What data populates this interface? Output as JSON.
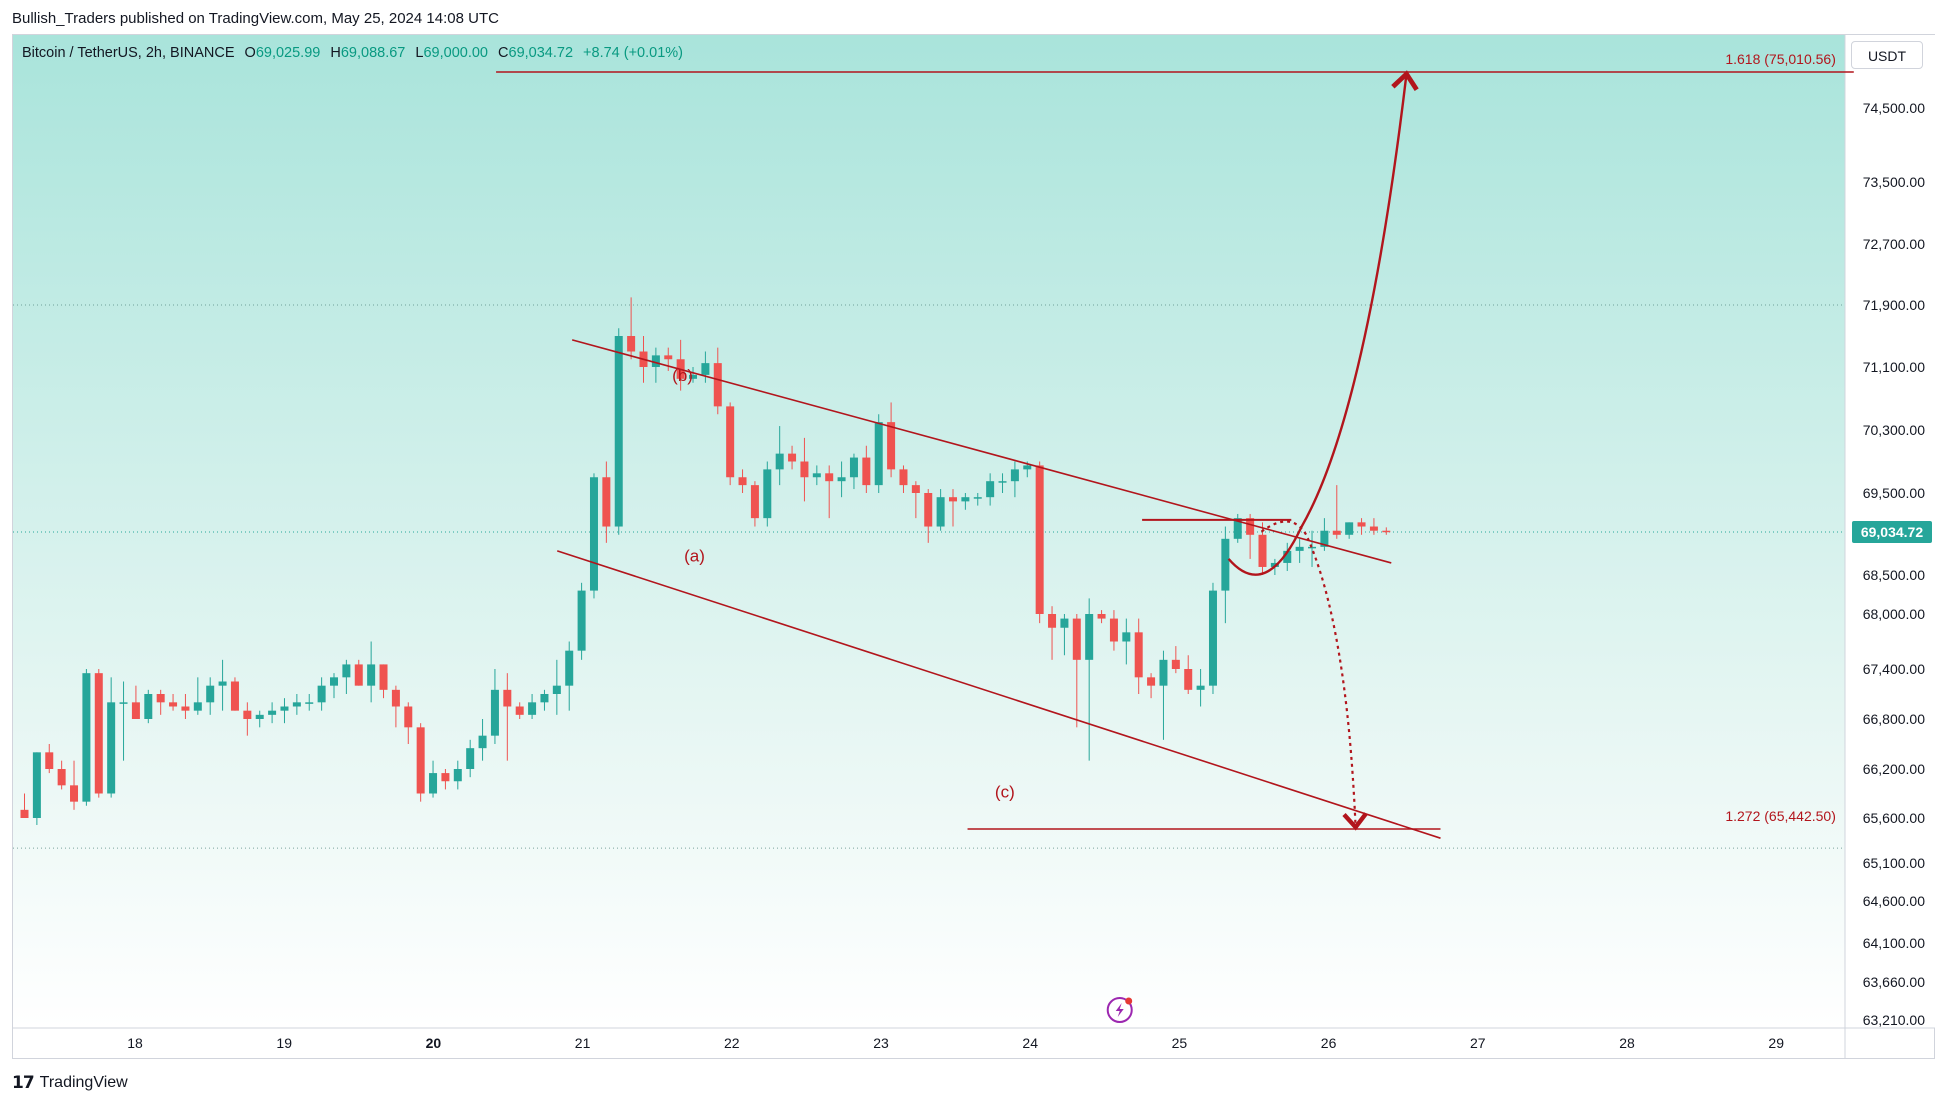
{
  "publish_line": "Bullish_Traders published on TradingView.com, May 25, 2024 14:08 UTC",
  "symbol_line": {
    "name": "Bitcoin / TetherUS, 2h, BINANCE",
    "open_label": "O",
    "open": "69,025.99",
    "high_label": "H",
    "high": "69,088.67",
    "low_label": "L",
    "low": "69,000.00",
    "close_label": "C",
    "close": "69,034.72",
    "change": "+8.74 (+0.01%)"
  },
  "currency": "USDT",
  "last_price": "69,034.72",
  "brand": "TradingView",
  "colors": {
    "up": "#26a69a",
    "down": "#ef5350",
    "drawing": "#b2151c",
    "bg_top": "#a9e4db",
    "bg_bottom": "#ffffff",
    "price_label_bg": "#26a69a",
    "bolt_icon": "#9c27b0"
  },
  "icons": {
    "event": "lightning-bolt-icon",
    "logo": "tradingview-logo-icon"
  },
  "chart_data": {
    "type": "candlestick",
    "interval": "2h",
    "ylim": [
      62900,
      75900
    ],
    "xlim_days": [
      17.3,
      29.5
    ],
    "y_ticks": [
      74500,
      73500,
      72700,
      71900,
      71100,
      70300,
      69500,
      68500,
      68000,
      67400,
      66800,
      66200,
      65600,
      65100,
      64600,
      64100,
      63660,
      63210
    ],
    "y_tick_labels": [
      "74,500.00",
      "73,500.00",
      "72,700.00",
      "71,900.00",
      "71,100.00",
      "70,300.00",
      "69,500.00",
      "68,500.00",
      "68,000.00",
      "67,400.00",
      "66,800.00",
      "66,200.00",
      "65,600.00",
      "65,100.00",
      "64,600.00",
      "64,100.00",
      "63,660.00",
      "63,210.00"
    ],
    "x_ticks": [
      18,
      19,
      20,
      21,
      22,
      23,
      24,
      25,
      26,
      27,
      28,
      29
    ],
    "x_tick_labels": [
      "18",
      "19",
      "20",
      "21",
      "22",
      "23",
      "24",
      "25",
      "26",
      "27",
      "28",
      "29"
    ],
    "x_bold_ticks": [
      "20"
    ],
    "candles": [
      [
        65700,
        65900,
        65600,
        65600
      ],
      [
        65600,
        66400,
        65500,
        66400
      ],
      [
        66400,
        66500,
        66150,
        66200
      ],
      [
        66200,
        66300,
        65950,
        66000
      ],
      [
        66000,
        66300,
        65700,
        65800
      ],
      [
        65800,
        67400,
        65750,
        67350
      ],
      [
        67350,
        67400,
        65850,
        65900
      ],
      [
        65900,
        67300,
        65850,
        67000
      ],
      [
        67000,
        67250,
        66300,
        67000
      ],
      [
        67000,
        67200,
        66800,
        66800
      ],
      [
        66800,
        67150,
        66750,
        67100
      ],
      [
        67100,
        67150,
        66850,
        67000
      ],
      [
        67000,
        67100,
        66900,
        66950
      ],
      [
        66950,
        67100,
        66800,
        66900
      ],
      [
        66900,
        67300,
        66850,
        67000
      ],
      [
        67000,
        67300,
        66850,
        67200
      ],
      [
        67200,
        67500,
        66900,
        67250
      ],
      [
        67250,
        67300,
        66900,
        66900
      ],
      [
        66900,
        67000,
        66600,
        66800
      ],
      [
        66800,
        66900,
        66700,
        66850
      ],
      [
        66850,
        67000,
        66750,
        66900
      ],
      [
        66900,
        67050,
        66750,
        66950
      ],
      [
        66950,
        67100,
        66850,
        67000
      ],
      [
        67000,
        67100,
        66900,
        67000
      ],
      [
        67000,
        67300,
        66900,
        67200
      ],
      [
        67200,
        67350,
        67050,
        67300
      ],
      [
        67300,
        67500,
        67100,
        67450
      ],
      [
        67450,
        67500,
        67200,
        67200
      ],
      [
        67200,
        67700,
        67000,
        67450
      ],
      [
        67450,
        67450,
        67050,
        67150
      ],
      [
        67150,
        67200,
        66700,
        66950
      ],
      [
        66950,
        67000,
        66500,
        66700
      ],
      [
        66700,
        66750,
        65800,
        65900
      ],
      [
        65900,
        66300,
        65850,
        66150
      ],
      [
        66150,
        66200,
        65950,
        66050
      ],
      [
        66050,
        66300,
        65950,
        66200
      ],
      [
        66200,
        66550,
        66100,
        66450
      ],
      [
        66450,
        66800,
        66300,
        66600
      ],
      [
        66600,
        67400,
        66500,
        67150
      ],
      [
        67150,
        67350,
        66300,
        66950
      ],
      [
        66950,
        67000,
        66800,
        66850
      ],
      [
        66850,
        67100,
        66800,
        67000
      ],
      [
        67000,
        67150,
        66900,
        67100
      ],
      [
        67100,
        67500,
        66850,
        67200
      ],
      [
        67200,
        67700,
        66900,
        67600
      ],
      [
        67600,
        68400,
        67500,
        68300
      ],
      [
        68300,
        69750,
        68200,
        69700
      ],
      [
        69700,
        69900,
        68900,
        69100
      ],
      [
        69100,
        71600,
        69000,
        71500
      ],
      [
        71500,
        72000,
        71200,
        71300
      ],
      [
        71300,
        71500,
        70900,
        71100
      ],
      [
        71100,
        71350,
        70900,
        71250
      ],
      [
        71250,
        71350,
        71050,
        71200
      ],
      [
        71200,
        71450,
        70800,
        70950
      ],
      [
        70950,
        71100,
        70900,
        71000
      ],
      [
        71000,
        71300,
        70900,
        71150
      ],
      [
        71150,
        71350,
        70500,
        70600
      ],
      [
        70600,
        70650,
        69600,
        69700
      ],
      [
        69700,
        69800,
        69500,
        69600
      ],
      [
        69600,
        69650,
        69100,
        69200
      ],
      [
        69200,
        69900,
        69100,
        69800
      ],
      [
        69800,
        70350,
        69600,
        70000
      ],
      [
        70000,
        70100,
        69800,
        69900
      ],
      [
        69900,
        70200,
        69400,
        69700
      ],
      [
        69700,
        69850,
        69600,
        69750
      ],
      [
        69750,
        69850,
        69200,
        69650
      ],
      [
        69650,
        69900,
        69450,
        69700
      ],
      [
        69700,
        70000,
        69550,
        69950
      ],
      [
        69950,
        70100,
        69500,
        69600
      ],
      [
        69600,
        70500,
        69500,
        70400
      ],
      [
        70400,
        70650,
        69700,
        69800
      ],
      [
        69800,
        69850,
        69500,
        69600
      ],
      [
        69600,
        69650,
        69200,
        69500
      ],
      [
        69500,
        69550,
        68900,
        69100
      ],
      [
        69100,
        69550,
        69050,
        69450
      ],
      [
        69450,
        69550,
        69100,
        69400
      ],
      [
        69400,
        69500,
        69300,
        69450
      ],
      [
        69450,
        69500,
        69350,
        69450
      ],
      [
        69450,
        69750,
        69350,
        69650
      ],
      [
        69650,
        69750,
        69500,
        69650
      ],
      [
        69650,
        69900,
        69450,
        69800
      ],
      [
        69800,
        69900,
        69700,
        69850
      ],
      [
        69850,
        69900,
        67900,
        68000
      ],
      [
        68000,
        68100,
        67500,
        67850
      ],
      [
        67850,
        68000,
        67550,
        67950
      ],
      [
        67950,
        68000,
        66700,
        67500
      ],
      [
        67500,
        68200,
        66300,
        68000
      ],
      [
        68000,
        68050,
        67900,
        67950
      ],
      [
        67950,
        68050,
        67600,
        67700
      ],
      [
        67700,
        67950,
        67450,
        67800
      ],
      [
        67800,
        67950,
        67100,
        67300
      ],
      [
        67300,
        67350,
        67050,
        67200
      ],
      [
        67200,
        67600,
        66550,
        67500
      ],
      [
        67500,
        67650,
        67350,
        67400
      ],
      [
        67400,
        67550,
        67100,
        67150
      ],
      [
        67150,
        67400,
        66950,
        67200
      ],
      [
        67200,
        68400,
        67100,
        68300
      ],
      [
        68300,
        69100,
        67900,
        68950
      ],
      [
        68950,
        69250,
        68900,
        69200
      ],
      [
        69200,
        69250,
        68700,
        69000
      ],
      [
        69000,
        69150,
        68500,
        68600
      ],
      [
        68600,
        68700,
        68500,
        68650
      ],
      [
        68650,
        68900,
        68550,
        68800
      ],
      [
        68800,
        68950,
        68650,
        68850
      ],
      [
        68850,
        69050,
        68600,
        68850
      ],
      [
        68850,
        69200,
        68800,
        69050
      ],
      [
        69050,
        69600,
        68950,
        69000
      ],
      [
        69000,
        69150,
        68950,
        69150
      ],
      [
        69150,
        69200,
        69000,
        69100
      ],
      [
        69100,
        69200,
        69000,
        69050
      ],
      [
        69050,
        69090,
        69000,
        69035
      ]
    ],
    "lines": [
      {
        "name": "upper-channel",
        "from": [
          20.93,
          71450
        ],
        "to": [
          26.42,
          68650
        ]
      },
      {
        "name": "lower-channel",
        "from": [
          20.83,
          68800
        ],
        "to": [
          26.75,
          65350
        ]
      },
      {
        "name": "fib-1.618",
        "from": [
          20.42,
          75010.56
        ],
        "to": [
          29.52,
          75010.56
        ]
      },
      {
        "name": "fib-1.272",
        "from": [
          23.58,
          65442.5
        ],
        "to": [
          26.75,
          65442.5
        ]
      },
      {
        "name": "resistance",
        "from": [
          24.75,
          69180
        ],
        "to": [
          25.75,
          69180
        ]
      }
    ],
    "annotations": [
      {
        "text": "(a)",
        "x": 21.75,
        "y": 68670
      },
      {
        "text": "(b)",
        "x": 21.67,
        "y": 70920
      },
      {
        "text": "(c)",
        "x": 23.83,
        "y": 65850
      },
      {
        "text": "1.618 (75,010.56)",
        "x": 29.4,
        "y": 75010.56
      },
      {
        "text": "1.272 (65,442.50)",
        "x": 29.4,
        "y": 65442.5
      }
    ],
    "dotted_levels": [
      71900,
      65250
    ]
  }
}
